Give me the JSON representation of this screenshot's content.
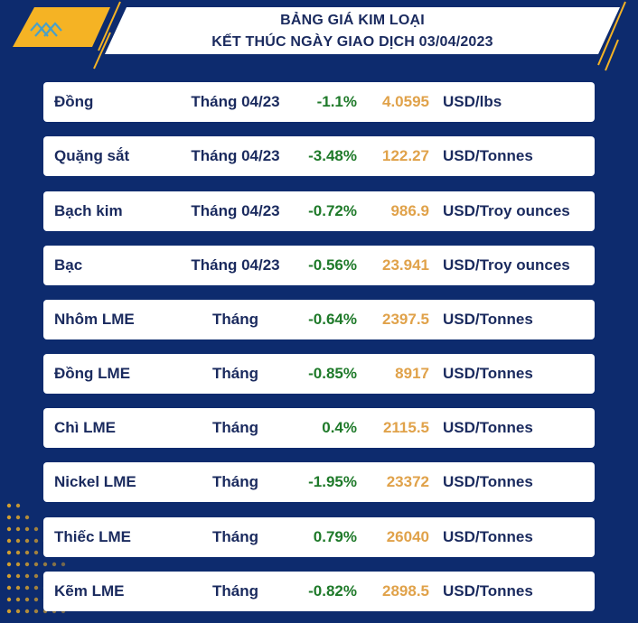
{
  "header": {
    "title_line1": "BẢNG GIÁ KIM LOẠI",
    "title_line2": "KẾT THÚC NGÀY GIAO DỊCH 03/04/2023"
  },
  "colors": {
    "background": "#0d2b6e",
    "accent_yellow": "#f5b324",
    "change_green": "#1f7a2a",
    "price_gold": "#e0a24a",
    "text_navy": "#1a2a5e"
  },
  "rows": [
    {
      "name": "Đồng",
      "term": "Tháng 04/23",
      "change": "-1.1%",
      "price": "4.0595",
      "unit": "USD/lbs"
    },
    {
      "name": "Quặng sắt",
      "term": "Tháng 04/23",
      "change": "-3.48%",
      "price": "122.27",
      "unit": "USD/Tonnes"
    },
    {
      "name": "Bạch kim",
      "term": "Tháng 04/23",
      "change": "-0.72%",
      "price": "986.9",
      "unit": "USD/Troy ounces"
    },
    {
      "name": "Bạc",
      "term": "Tháng 04/23",
      "change": "-0.56%",
      "price": "23.941",
      "unit": "USD/Troy ounces"
    },
    {
      "name": "Nhôm LME",
      "term": "Tháng",
      "change": "-0.64%",
      "price": "2397.5",
      "unit": "USD/Tonnes"
    },
    {
      "name": "Đồng LME",
      "term": "Tháng",
      "change": "-0.85%",
      "price": "8917",
      "unit": "USD/Tonnes"
    },
    {
      "name": "Chì LME",
      "term": "Tháng",
      "change": "0.4%",
      "price": "2115.5",
      "unit": "USD/Tonnes"
    },
    {
      "name": "Nickel LME",
      "term": "Tháng",
      "change": "-1.95%",
      "price": "23372",
      "unit": "USD/Tonnes"
    },
    {
      "name": "Thiếc LME",
      "term": "Tháng",
      "change": "0.79%",
      "price": "26040",
      "unit": "USD/Tonnes"
    },
    {
      "name": "Kẽm LME",
      "term": "Tháng",
      "change": "-0.82%",
      "price": "2898.5",
      "unit": "USD/Tonnes"
    }
  ]
}
